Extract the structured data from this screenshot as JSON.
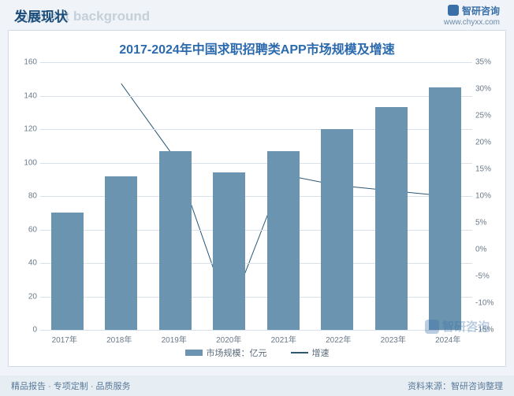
{
  "header": {
    "title": "发展现状",
    "ghost": "lopment background",
    "brand_name": "智研咨询",
    "brand_url": "www.chyxx.com"
  },
  "chart": {
    "title": "2017-2024年中国求职招聘类APP市场规模及增速",
    "type": "bar+line",
    "background_color": "#ffffff",
    "grid_color": "#d8e1ea",
    "bar_color": "#6a94b0",
    "line_color": "#2c5775",
    "line_width": 2,
    "categories": [
      "2017年",
      "2018年",
      "2019年",
      "2020年",
      "2021年",
      "2022年",
      "2023年",
      "2024年"
    ],
    "bar_values": [
      70,
      92,
      107,
      94,
      107,
      120,
      133,
      145
    ],
    "line_values": [
      null,
      31,
      17,
      -12,
      14,
      12,
      11,
      10
    ],
    "y_left": {
      "min": 0,
      "max": 160,
      "step": 20,
      "ticks": [
        0,
        20,
        40,
        60,
        80,
        100,
        120,
        140,
        160
      ]
    },
    "y_right": {
      "min": -15,
      "max": 35,
      "step": 5,
      "ticks": [
        -15,
        -10,
        -5,
        0,
        5,
        10,
        15,
        20,
        25,
        30,
        35
      ]
    },
    "legend": {
      "bar_label": "市场规模：亿元",
      "line_label": "增速"
    },
    "label_fontsize": 10,
    "title_fontsize": 16,
    "bar_width_ratio": 0.6
  },
  "watermark": {
    "text": "智研咨询"
  },
  "footer": {
    "left": "精品报告 · 专项定制 · 品质服务",
    "right": "资料来源：智研咨询整理"
  }
}
